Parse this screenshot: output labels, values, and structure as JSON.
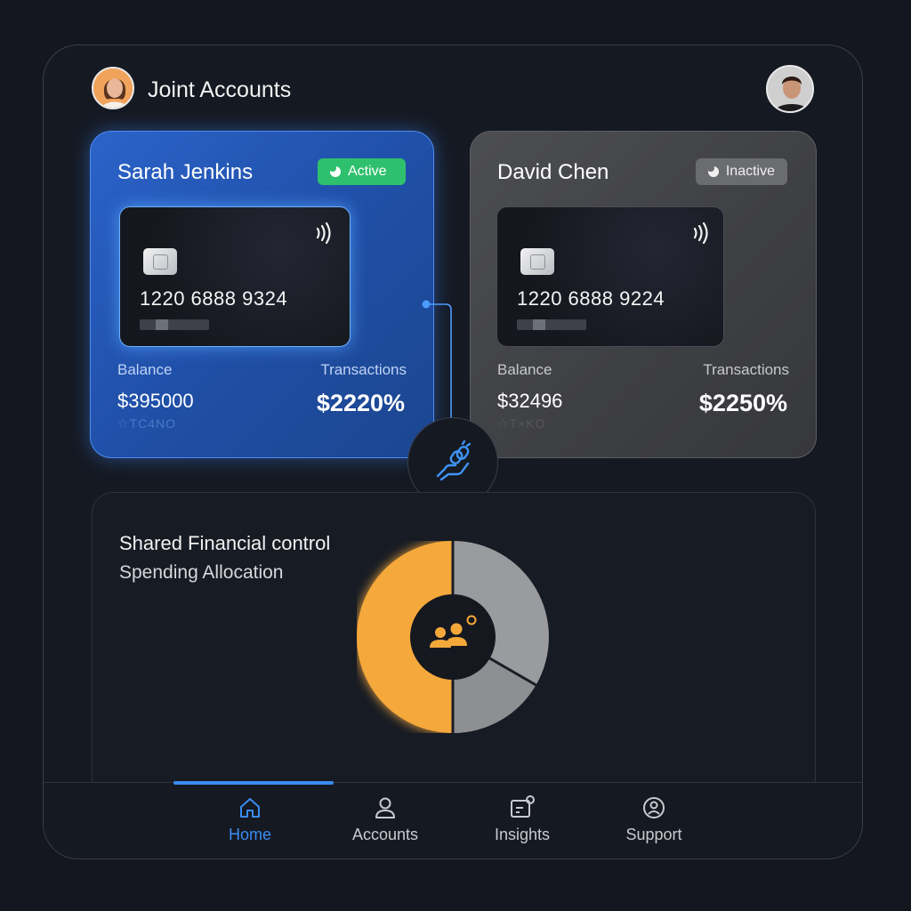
{
  "header": {
    "title": "Joint Accounts",
    "left_avatar": "user-avatar-woman",
    "right_avatar": "user-avatar-man"
  },
  "accounts": [
    {
      "name": "Sarah Jenkins",
      "status": "Active",
      "card_number": "1220 6888 9324",
      "balance_label": "Balance",
      "balance": "$395000",
      "transactions_label": "Transactions",
      "transactions": "$2220%",
      "faint_text": "☆TC4NO"
    },
    {
      "name": "David Chen",
      "status": "Inactive",
      "card_number": "1220 6888 9224",
      "balance_label": "Balance",
      "balance": "$32496",
      "transactions_label": "Transactions",
      "transactions": "$2250%",
      "faint_text": "☆T×KO"
    }
  ],
  "shared": {
    "title": "Shared Financial control",
    "subtitle": "Spending Allocation",
    "center_icon": "group-users-icon"
  },
  "colors": {
    "accent": "#3a8cf0",
    "active_green": "#2fc06d",
    "donut_primary": "#f5a83a",
    "donut_secondary": "#9a9b9f"
  },
  "nav": {
    "items": [
      {
        "label": "Home",
        "icon": "home-icon",
        "active": true
      },
      {
        "label": "Accounts",
        "icon": "user-icon",
        "active": false
      },
      {
        "label": "Insights",
        "icon": "insights-icon",
        "active": false
      },
      {
        "label": "Support",
        "icon": "support-icon",
        "active": false
      }
    ]
  }
}
